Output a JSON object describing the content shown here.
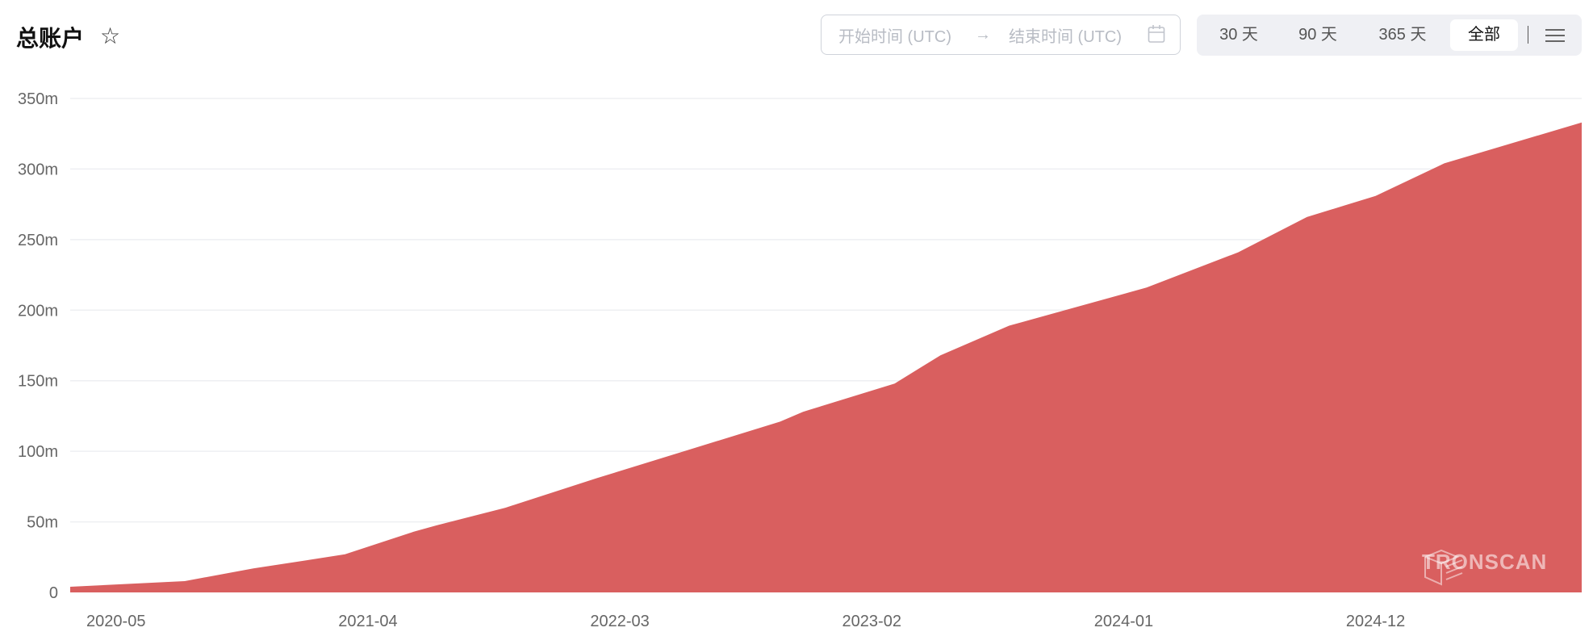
{
  "header": {
    "title": "总账户",
    "favorite_icon": "star-outline-icon"
  },
  "date_range": {
    "start_placeholder": "开始时间 (UTC)",
    "arrow": "→",
    "end_placeholder": "结束时间 (UTC)",
    "calendar_icon": "calendar-icon"
  },
  "range_buttons": [
    {
      "label": "30 天"
    },
    {
      "label": "90 天"
    },
    {
      "label": "365 天"
    },
    {
      "label": "全部",
      "active": true
    }
  ],
  "menu_icon": "hamburger-menu-icon",
  "watermark": "TRONSCAN",
  "chart_data": {
    "type": "area",
    "title": "总账户",
    "color": "#d95f5f",
    "grid": "horizontal",
    "ylim": [
      0,
      350
    ],
    "y_ticks": [
      "0",
      "50m",
      "100m",
      "150m",
      "200m",
      "250m",
      "300m",
      "350m"
    ],
    "y_tick_values": [
      0,
      50,
      100,
      150,
      200,
      250,
      300,
      350
    ],
    "y_unit": "m",
    "xlim": [
      "2020-03",
      "2025-09"
    ],
    "x_ticks": [
      "2020-05",
      "2021-04",
      "2022-03",
      "2023-02",
      "2024-01",
      "2024-12"
    ],
    "x": [
      "2020-03",
      "2020-08",
      "2020-11",
      "2021-03",
      "2021-06",
      "2021-07",
      "2021-10",
      "2022-02",
      "2022-06",
      "2022-10",
      "2022-11",
      "2023-03",
      "2023-05",
      "2023-08",
      "2024-02",
      "2024-06",
      "2024-09",
      "2024-12",
      "2025-03",
      "2025-09"
    ],
    "values": [
      4,
      8,
      17,
      27,
      43,
      47.5,
      60,
      81,
      101,
      121,
      128,
      148,
      168,
      189,
      216,
      241,
      266,
      281,
      304,
      333
    ]
  }
}
